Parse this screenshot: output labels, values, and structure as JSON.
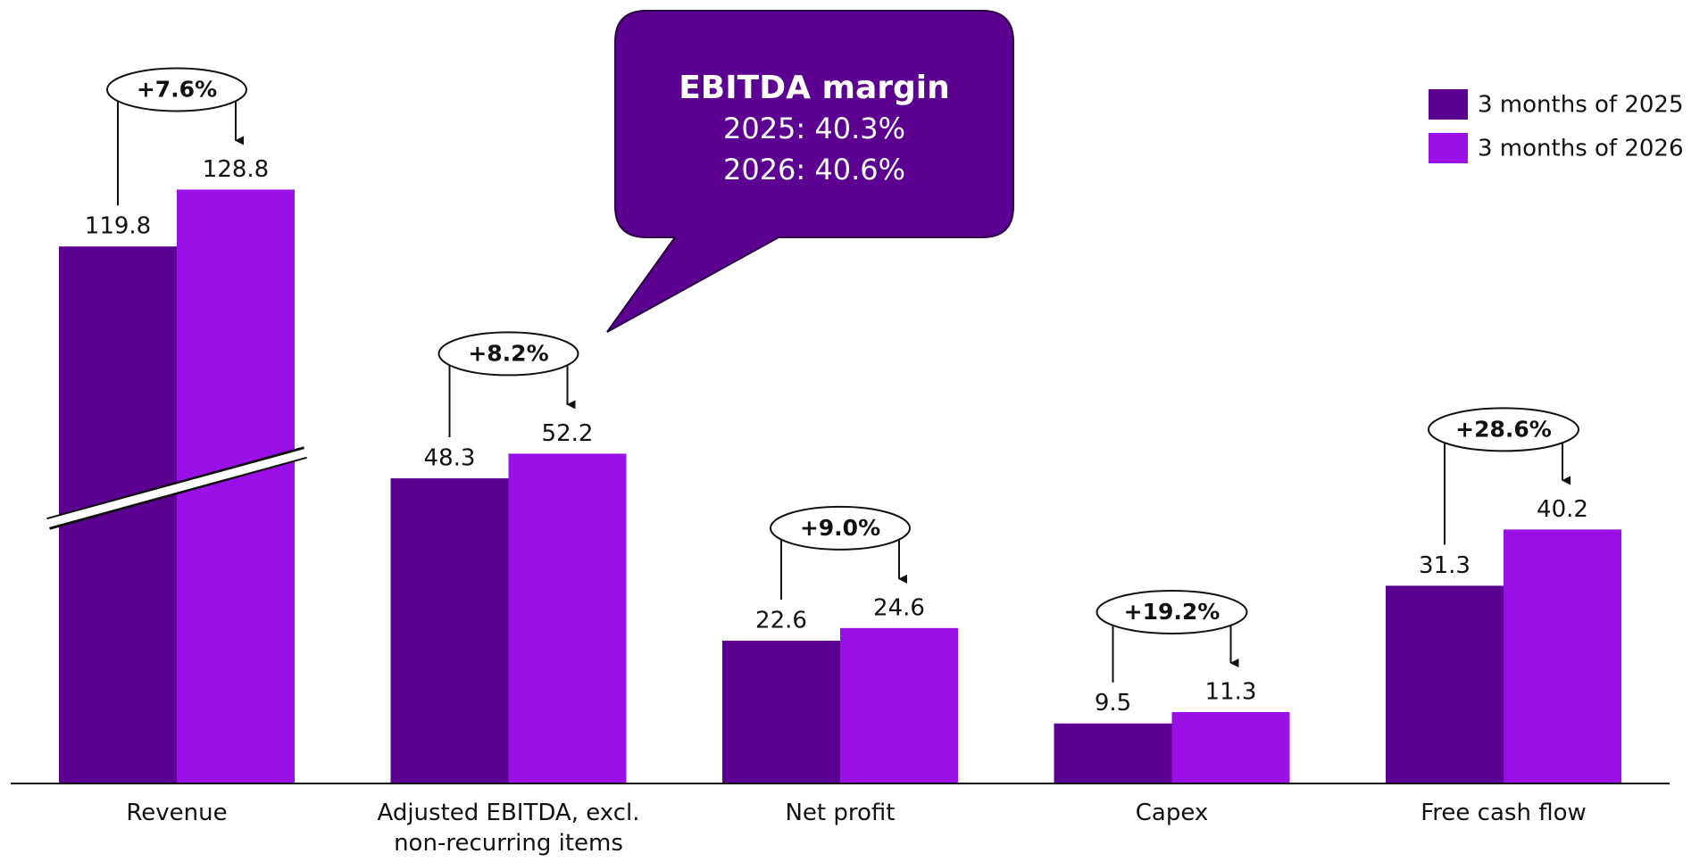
{
  "chart_data": {
    "type": "bar",
    "categories": [
      "Revenue",
      "Adjusted EBITDA, excl. non-recurring items",
      "Net profit",
      "Capex",
      "Free cash flow"
    ],
    "series": [
      {
        "name": "3 months of 2025",
        "color": "#5b0090",
        "values": [
          119.8,
          48.3,
          22.6,
          9.5,
          31.3
        ]
      },
      {
        "name": "3 months of 2026",
        "color": "#9b10e6",
        "values": [
          128.8,
          52.2,
          24.6,
          11.3,
          40.2
        ]
      }
    ],
    "change_labels": [
      "+7.6%",
      "+8.2%",
      "+9.0%",
      "+19.2%",
      "+28.6%"
    ],
    "callout": {
      "title": "EBITDA margin",
      "lines": [
        "2025: 40.3%",
        "2026: 40.6%"
      ],
      "color": "#5b0090"
    },
    "ylim": [
      0,
      100
    ],
    "axis_break": true,
    "legend": "top-right"
  }
}
